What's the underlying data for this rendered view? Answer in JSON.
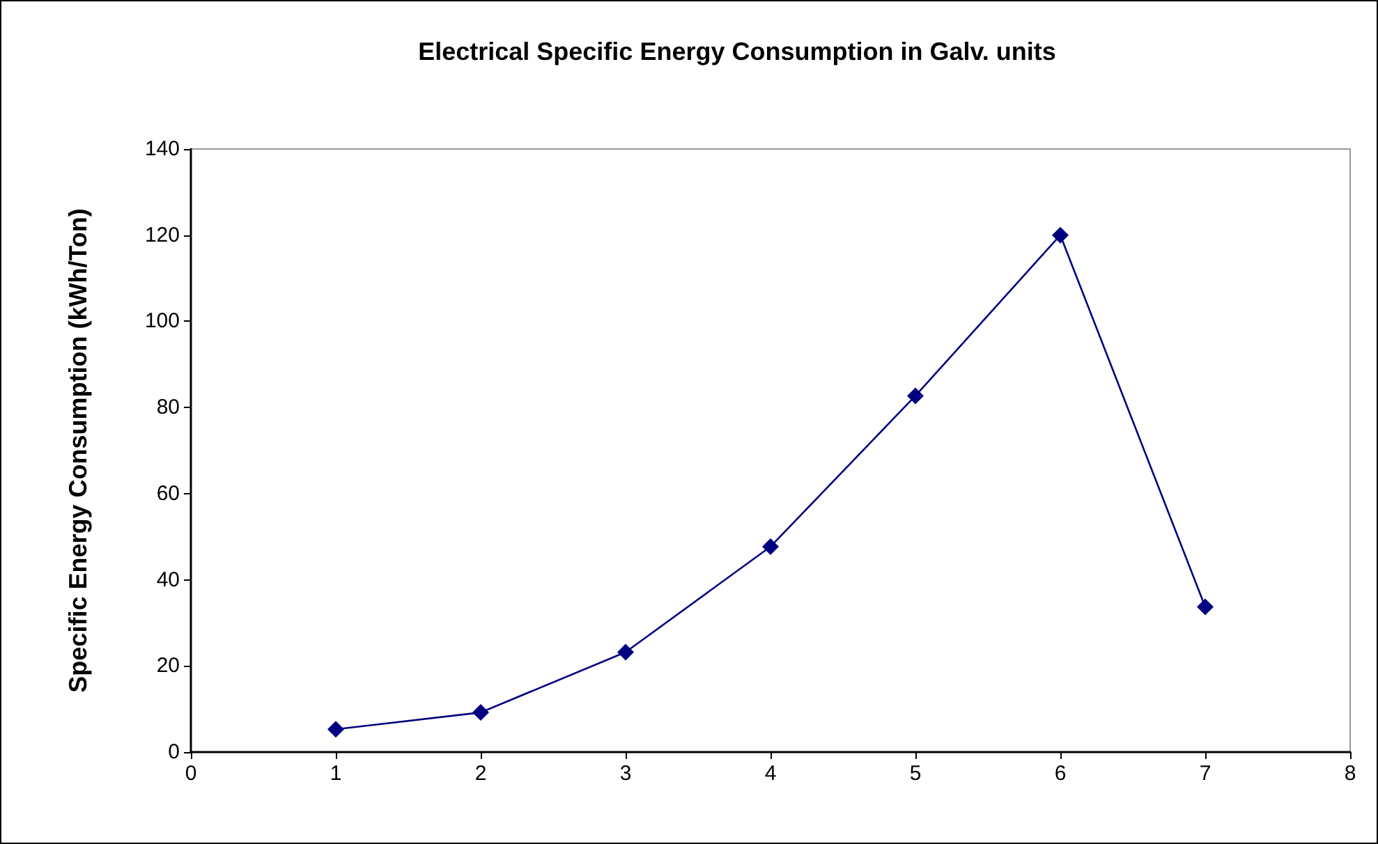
{
  "chart_data": {
    "type": "line",
    "title": "Electrical Specific Energy Consumption in Galv. units",
    "ylabel": "Specific Energy Consumption (kWh/Ton)",
    "x": [
      1,
      2,
      3,
      4,
      5,
      6,
      7
    ],
    "series": [
      {
        "color": "#000080",
        "values": [
          5.3,
          9.2,
          23.2,
          47.7,
          82.7,
          120,
          33.7
        ]
      }
    ],
    "xlim": [
      0,
      8
    ],
    "xticks": [
      0,
      1,
      2,
      3,
      4,
      5,
      6,
      7,
      8
    ],
    "ylim": [
      0,
      140
    ],
    "yticks": [
      0,
      20,
      40,
      60,
      80,
      100,
      120,
      140
    ],
    "grid": false,
    "marker": "diamond",
    "line_style": "solid"
  }
}
